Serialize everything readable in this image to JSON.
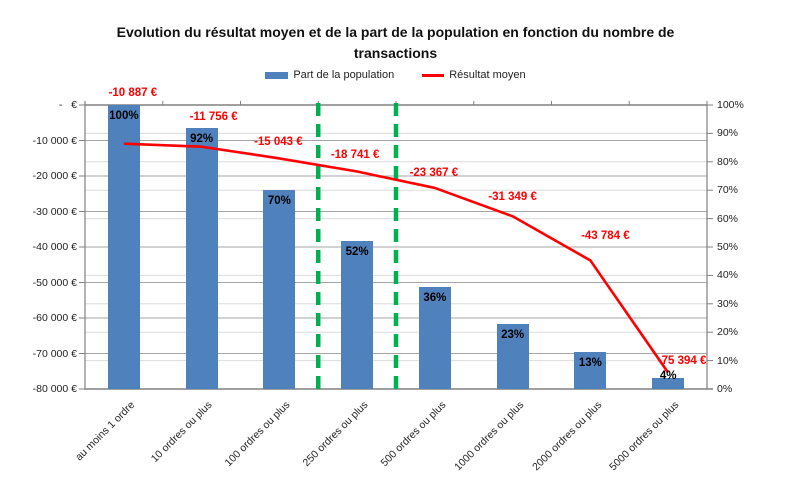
{
  "title": {
    "lines": [
      "Evolution du résultat moyen et de la part de la population en fonction du nombre de",
      "transactions"
    ]
  },
  "legend": {
    "items": [
      {
        "label": "Part de la population",
        "swatch": "bar-swatch"
      },
      {
        "label": "Résultat moyen",
        "swatch": "line-swatch"
      }
    ]
  },
  "chart_data": {
    "type": "bar+line",
    "categories": [
      "au moins 1 ordre",
      "10 ordres ou plus",
      "100 ordres ou plus",
      "250 ordres ou plus",
      "500 ordres ou plus",
      "1000 ordres ou plus",
      "2000 ordres ou plus",
      "5000 ordres ou plus"
    ],
    "series": [
      {
        "name": "Part de la population",
        "type": "bar",
        "axis": "right",
        "values": [
          100,
          92,
          70,
          52,
          36,
          23,
          13,
          4
        ],
        "value_labels": [
          "100%",
          "92%",
          "70%",
          "52%",
          "36%",
          "23%",
          "13%",
          "4%"
        ],
        "color": "#4F81BD"
      },
      {
        "name": "Résultat moyen",
        "type": "line",
        "axis": "left",
        "values": [
          -10887,
          -11756,
          -15043,
          -18741,
          -23367,
          -31349,
          -43784,
          -75394
        ],
        "value_labels": [
          "-10 887 €",
          "-11 756 €",
          "-15 043 €",
          "-18 741 €",
          "-23 367 €",
          "-31 349 €",
          "-43 784 €",
          "-75 394 €"
        ],
        "color": "#FF0000"
      }
    ],
    "left_axis": {
      "min": -80000,
      "max": 0,
      "step": 10000,
      "tick_labels": [
        "-   €",
        "-10 000 €",
        "-20 000 €",
        "-30 000 €",
        "-40 000 €",
        "-50 000 €",
        "-60 000 €",
        "-70 000 €",
        "-80 000 €"
      ]
    },
    "right_axis": {
      "min": 0,
      "max": 100,
      "step": 10,
      "tick_labels": [
        "100%",
        "90%",
        "80%",
        "70%",
        "60%",
        "50%",
        "40%",
        "30%",
        "20%",
        "10%",
        "0%"
      ]
    },
    "gridlines": {
      "left_axis_color": "#a6a6a6",
      "right_axis_color": "#dcdcdc",
      "axis_color": "#808080"
    },
    "annotations": {
      "vlines": [
        {
          "after_category_index": 2
        },
        {
          "after_category_index": 3
        }
      ],
      "style": "dashed",
      "color": "#00B050"
    },
    "legend_position": "top"
  }
}
